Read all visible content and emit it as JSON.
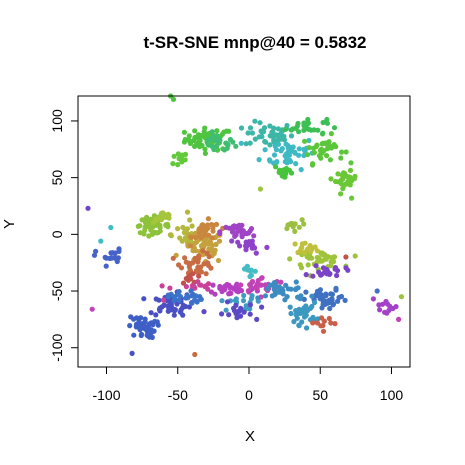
{
  "chart_data": {
    "type": "scatter",
    "title": "t-SR-SNE mnp@40 = 0.5832",
    "xlabel": "X",
    "ylabel": "Y",
    "xlim": [
      -120,
      113
    ],
    "ylim": [
      -117,
      122
    ],
    "x_ticks": [
      -100,
      -50,
      0,
      50,
      100
    ],
    "y_ticks": [
      -100,
      -50,
      0,
      50,
      100
    ],
    "x_tick_labels": [
      "-100",
      "-50",
      "0",
      "50",
      "100"
    ],
    "y_tick_labels": [
      "-100",
      "-50",
      "0",
      "50",
      "100"
    ],
    "grid": false,
    "legend": "none",
    "clusters": [
      {
        "color": "#4fc43f",
        "center": [
          -28,
          84
        ],
        "spread": [
          14,
          8
        ],
        "count": 55
      },
      {
        "color": "#62c93a",
        "center": [
          -50,
          66
        ],
        "spread": [
          6,
          5
        ],
        "count": 12
      },
      {
        "color": "#3fbd72",
        "center": [
          -22,
          80
        ],
        "spread": [
          10,
          7
        ],
        "count": 25
      },
      {
        "color": "#3cb6a6",
        "center": [
          14,
          88
        ],
        "spread": [
          14,
          9
        ],
        "count": 45
      },
      {
        "color": "#3fb9c4",
        "center": [
          28,
          72
        ],
        "spread": [
          16,
          12
        ],
        "count": 45
      },
      {
        "color": "#5cc63a",
        "center": [
          52,
          75
        ],
        "spread": [
          12,
          10
        ],
        "count": 35
      },
      {
        "color": "#3cbf55",
        "center": [
          40,
          95
        ],
        "spread": [
          12,
          6
        ],
        "count": 25
      },
      {
        "color": "#6ac736",
        "center": [
          68,
          48
        ],
        "spread": [
          6,
          6
        ],
        "count": 25
      },
      {
        "color": "#48c33c",
        "center": [
          25,
          55
        ],
        "spread": [
          6,
          6
        ],
        "count": 14
      },
      {
        "color": "#8dc23a",
        "center": [
          -68,
          8
        ],
        "spread": [
          10,
          6
        ],
        "count": 45
      },
      {
        "color": "#a5c53b",
        "center": [
          -60,
          15
        ],
        "spread": [
          6,
          4
        ],
        "count": 15
      },
      {
        "color": "#b5b63d",
        "center": [
          -40,
          0
        ],
        "spread": [
          12,
          10
        ],
        "count": 40
      },
      {
        "color": "#c5a13e",
        "center": [
          -32,
          -12
        ],
        "spread": [
          12,
          12
        ],
        "count": 45
      },
      {
        "color": "#c9863f",
        "center": [
          -30,
          2
        ],
        "spread": [
          8,
          8
        ],
        "count": 30
      },
      {
        "color": "#c86c44",
        "center": [
          -36,
          -26
        ],
        "spread": [
          10,
          8
        ],
        "count": 35
      },
      {
        "color": "#c2534a",
        "center": [
          -40,
          -38
        ],
        "spread": [
          6,
          4
        ],
        "count": 10
      },
      {
        "color": "#9fc43b",
        "center": [
          48,
          -22
        ],
        "spread": [
          14,
          6
        ],
        "count": 45
      },
      {
        "color": "#c1c03c",
        "center": [
          40,
          -12
        ],
        "spread": [
          8,
          4
        ],
        "count": 15
      },
      {
        "color": "#9bbf40",
        "center": [
          30,
          8
        ],
        "spread": [
          6,
          4
        ],
        "count": 12
      },
      {
        "color": "#a044c6",
        "center": [
          -8,
          2
        ],
        "spread": [
          10,
          6
        ],
        "count": 30
      },
      {
        "color": "#8d42c9",
        "center": [
          0,
          -10
        ],
        "spread": [
          12,
          6
        ],
        "count": 20
      },
      {
        "color": "#b43fc2",
        "center": [
          -12,
          -48
        ],
        "spread": [
          14,
          5
        ],
        "count": 30
      },
      {
        "color": "#c243b6",
        "center": [
          10,
          -45
        ],
        "spread": [
          14,
          6
        ],
        "count": 25
      },
      {
        "color": "#c9429a",
        "center": [
          -40,
          -46
        ],
        "spread": [
          12,
          4
        ],
        "count": 15
      },
      {
        "color": "#7a44c8",
        "center": [
          55,
          -32
        ],
        "spread": [
          10,
          5
        ],
        "count": 20
      },
      {
        "color": "#4a50c4",
        "center": [
          -55,
          -62
        ],
        "spread": [
          12,
          8
        ],
        "count": 50
      },
      {
        "color": "#3d5fc6",
        "center": [
          -75,
          -82
        ],
        "spread": [
          8,
          8
        ],
        "count": 40
      },
      {
        "color": "#3c72c8",
        "center": [
          -45,
          -55
        ],
        "spread": [
          10,
          6
        ],
        "count": 25
      },
      {
        "color": "#4563c9",
        "center": [
          -98,
          -20
        ],
        "spread": [
          8,
          6
        ],
        "count": 18
      },
      {
        "color": "#4070c2",
        "center": [
          55,
          -58
        ],
        "spread": [
          12,
          8
        ],
        "count": 40
      },
      {
        "color": "#3c8cc1",
        "center": [
          25,
          -50
        ],
        "spread": [
          14,
          8
        ],
        "count": 35
      },
      {
        "color": "#3c98c0",
        "center": [
          38,
          -70
        ],
        "spread": [
          8,
          8
        ],
        "count": 30
      },
      {
        "color": "#3f9ac4",
        "center": [
          -5,
          -60
        ],
        "spread": [
          12,
          6
        ],
        "count": 18
      },
      {
        "color": "#5d48c6",
        "center": [
          -10,
          -70
        ],
        "spread": [
          12,
          8
        ],
        "count": 20
      },
      {
        "color": "#44bcc5",
        "center": [
          0,
          -30
        ],
        "spread": [
          8,
          5
        ],
        "count": 10
      },
      {
        "color": "#c85f46",
        "center": [
          55,
          -78
        ],
        "spread": [
          10,
          4
        ],
        "count": 10
      },
      {
        "color": "#a342c8",
        "center": [
          95,
          -65
        ],
        "spread": [
          8,
          6
        ],
        "count": 12
      }
    ],
    "outliers": [
      {
        "x": -55,
        "y": 122,
        "color": "#4fc43f"
      },
      {
        "x": -53,
        "y": 119,
        "color": "#4fc43f"
      },
      {
        "x": -113,
        "y": 23,
        "color": "#6f45c8"
      },
      {
        "x": -97,
        "y": 6,
        "color": "#3fbdc4"
      },
      {
        "x": -104,
        "y": -6,
        "color": "#3fbdc4"
      },
      {
        "x": -110,
        "y": -66,
        "color": "#c243b6"
      },
      {
        "x": -82,
        "y": -105,
        "color": "#4a50c4"
      },
      {
        "x": -38,
        "y": -106,
        "color": "#c86c44"
      },
      {
        "x": 8,
        "y": 40,
        "color": "#9dc43b"
      },
      {
        "x": 107,
        "y": -55,
        "color": "#9dc43b"
      },
      {
        "x": 105,
        "y": -75,
        "color": "#c243b6"
      },
      {
        "x": 68,
        "y": -20,
        "color": "#c2534a"
      },
      {
        "x": 72,
        "y": 32,
        "color": "#6ac736"
      },
      {
        "x": -60,
        "y": -58,
        "color": "#c9429a"
      },
      {
        "x": 90,
        "y": -50,
        "color": "#4070c2"
      }
    ]
  }
}
